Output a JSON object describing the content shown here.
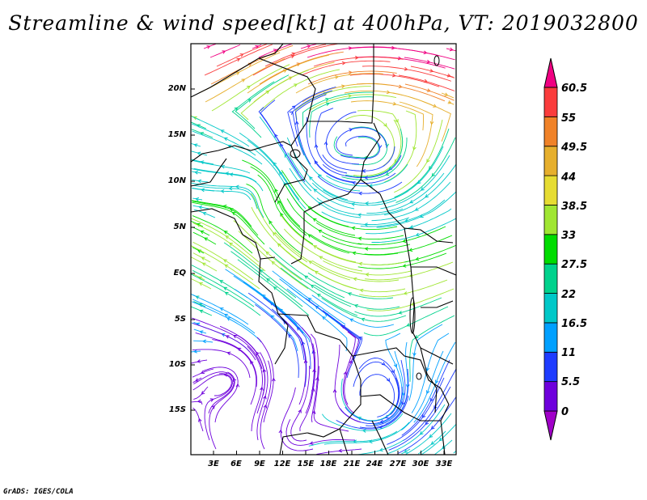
{
  "title": "Streamline & wind speed[kt] at 400hPa, VT: 2019032800",
  "footer": "GrADS: IGES/COLA",
  "map": {
    "lat_labels": [
      "20N",
      "15N",
      "10N",
      "5N",
      "EQ",
      "5S",
      "10S",
      "15S"
    ],
    "lon_labels": [
      "3E",
      "6E",
      "9E",
      "12E",
      "15E",
      "18E",
      "21E",
      "24E",
      "27E",
      "30E",
      "33E"
    ]
  },
  "colorbar": {
    "labels": [
      "0",
      "5.5",
      "11",
      "16.5",
      "22",
      "27.5",
      "33",
      "38.5",
      "44",
      "49.5",
      "55",
      "60.5"
    ],
    "colors": [
      "#a000c8",
      "#6e00dc",
      "#1e3cff",
      "#00a0ff",
      "#00c8c8",
      "#00d28c",
      "#00dc00",
      "#a0e632",
      "#e6dc32",
      "#e6af2d",
      "#f08228",
      "#fa3c3c",
      "#f00082"
    ]
  }
}
